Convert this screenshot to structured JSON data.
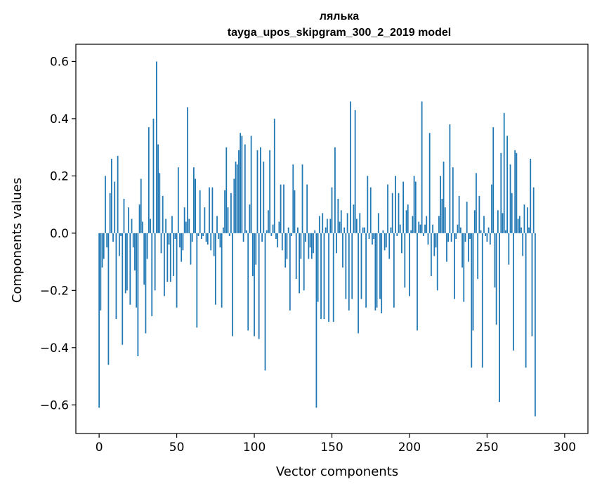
{
  "chart_data": {
    "type": "bar",
    "title": "лялька",
    "subtitle": "tayga_upos_skipgram_300_2_2019 model",
    "xlabel": "Vector components",
    "ylabel": "Components values",
    "xlim": [
      -15,
      315
    ],
    "ylim": [
      -0.7,
      0.66
    ],
    "xticks": [
      0,
      50,
      100,
      150,
      200,
      250,
      300
    ],
    "yticks": [
      -0.6,
      -0.4,
      -0.2,
      0.0,
      0.2,
      0.4,
      0.6
    ],
    "ytick_labels": [
      "−0.6",
      "−0.4",
      "−0.2",
      "0.0",
      "0.2",
      "0.4",
      "0.6"
    ],
    "xtick_labels": [
      "0",
      "50",
      "100",
      "150",
      "200",
      "250",
      "300"
    ],
    "bar_color": "#1f77b4",
    "values": [
      -0.61,
      -0.27,
      -0.12,
      -0.09,
      0.2,
      -0.05,
      -0.46,
      0.14,
      0.26,
      -0.03,
      0.18,
      -0.3,
      0.27,
      -0.08,
      -0.01,
      -0.39,
      0.12,
      -0.21,
      -0.2,
      0.09,
      -0.25,
      0.05,
      -0.05,
      -0.13,
      -0.26,
      -0.43,
      0.1,
      0.19,
      0.04,
      -0.18,
      -0.35,
      -0.09,
      0.37,
      0.05,
      -0.29,
      0.4,
      -0.2,
      0.6,
      0.31,
      0.21,
      -0.07,
      0.13,
      -0.22,
      0.05,
      -0.17,
      -0.04,
      -0.17,
      0.06,
      -0.15,
      -0.02,
      -0.26,
      0.23,
      -0.05,
      -0.1,
      -0.06,
      0.09,
      0.04,
      0.44,
      0.05,
      -0.11,
      -0.03,
      0.23,
      0.19,
      -0.33,
      -0.01,
      0.15,
      -0.02,
      -0.01,
      0.09,
      -0.03,
      -0.04,
      0.16,
      -0.06,
      0.16,
      -0.08,
      -0.25,
      0.06,
      -0.02,
      -0.05,
      -0.26,
      0.02,
      0.15,
      0.3,
      0.09,
      -0.01,
      0.14,
      -0.36,
      0.19,
      0.25,
      0.24,
      0.29,
      0.35,
      0.34,
      -0.03,
      0.31,
      0.01,
      -0.34,
      0.1,
      0.34,
      -0.15,
      -0.36,
      -0.11,
      0.29,
      -0.37,
      0.3,
      -0.03,
      0.25,
      -0.48,
      0.01,
      0.08,
      0.29,
      -0.01,
      0.03,
      0.4,
      -0.02,
      -0.05,
      0.04,
      0.17,
      -0.06,
      0.17,
      -0.12,
      -0.09,
      0.02,
      -0.27,
      -0.01,
      0.24,
      0.15,
      -0.16,
      0.02,
      -0.21,
      -0.09,
      0.24,
      -0.2,
      -0.03,
      0.17,
      -0.09,
      -0.05,
      -0.09,
      -0.07,
      0.01,
      -0.61,
      -0.24,
      0.06,
      -0.3,
      0.07,
      -0.3,
      0.02,
      0.05,
      -0.31,
      0.05,
      0.16,
      -0.31,
      0.3,
      -0.07,
      0.12,
      0.04,
      0.08,
      -0.12,
      0.02,
      -0.23,
      0.07,
      -0.27,
      0.46,
      -0.23,
      0.1,
      0.43,
      0.05,
      -0.35,
      0.07,
      -0.23,
      0.02,
      0.02,
      -0.26,
      0.2,
      -0.02,
      0.16,
      -0.04,
      -0.02,
      -0.27,
      -0.26,
      0.07,
      -0.23,
      -0.28,
      0.01,
      -0.06,
      -0.05,
      0.17,
      -0.09,
      0.02,
      0.14,
      -0.26,
      0.2,
      -0.01,
      0.14,
      0.03,
      -0.07,
      0.18,
      -0.19,
      0.08,
      0.1,
      -0.22,
      0.01,
      0.06,
      0.2,
      0.18,
      -0.34,
      0.04,
      0.03,
      0.46,
      -0.01,
      0.03,
      0.06,
      -0.04,
      0.35,
      -0.15,
      0.03,
      -0.08,
      -0.05,
      -0.2,
      0.06,
      0.2,
      0.12,
      0.25,
      0.09,
      -0.1,
      -0.03,
      0.38,
      -0.03,
      0.23,
      -0.23,
      -0.02,
      0.03,
      0.13,
      0.02,
      -0.12,
      -0.24,
      -0.03,
      0.11,
      -0.1,
      -0.02,
      -0.47,
      -0.34,
      0.08,
      0.21,
      -0.16,
      0.13,
      0.01,
      -0.47,
      0.06,
      -0.01,
      -0.03,
      0.02,
      -0.04,
      0.17,
      0.37,
      -0.19,
      -0.32,
      0.08,
      -0.59,
      0.28,
      0.07,
      0.42,
      0.01,
      0.34,
      -0.11,
      0.24,
      0.14,
      -0.41,
      0.29,
      0.28,
      0.05,
      0.06,
      0.02,
      -0.08,
      0.1,
      -0.47,
      0.09,
      0.02,
      0.26,
      -0.36,
      0.16,
      -0.64
    ],
    "grid": false
  }
}
